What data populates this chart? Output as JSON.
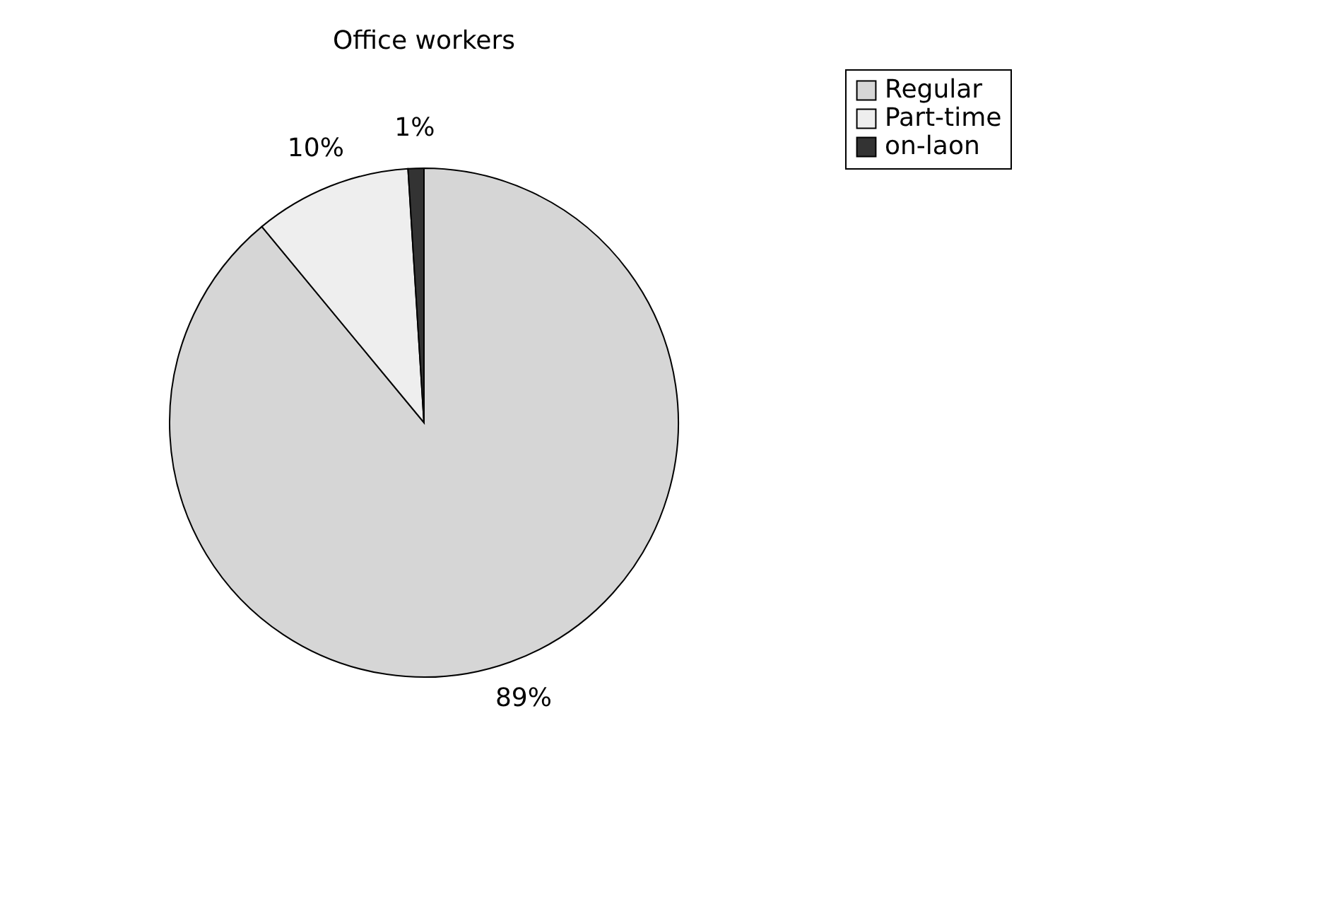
{
  "chart_data": {
    "type": "pie",
    "title": "Office workers",
    "categories": [
      "Regular",
      "Part-time",
      "on-laon"
    ],
    "values": [
      89,
      10,
      1
    ],
    "colors": [
      "#d6d6d6",
      "#eeeeee",
      "#333333"
    ],
    "value_labels": [
      "89%",
      "10%",
      "1%"
    ],
    "legend": "right"
  }
}
